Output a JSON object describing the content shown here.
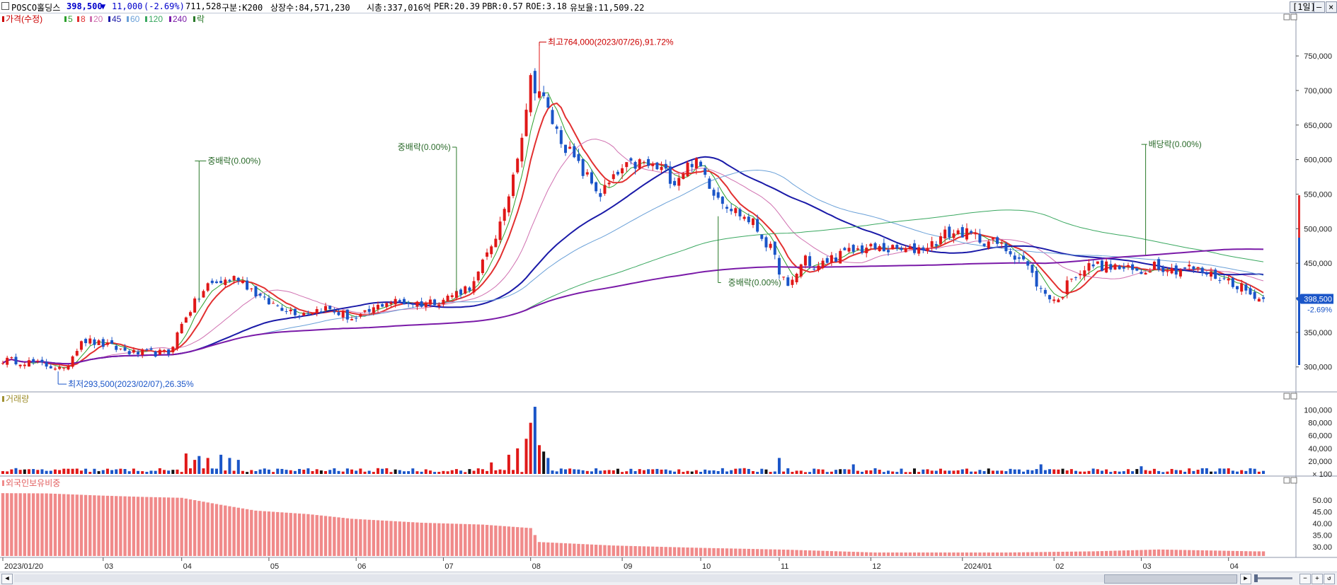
{
  "header": {
    "name": "POSCO홀딩스",
    "price": "398,500",
    "change_arrow": "▼",
    "change": "11,000",
    "change_pct": "(-2.69%)",
    "volume": "711,528",
    "segment": "구분:K200",
    "listed_shares": "상장수:84,571,230",
    "market_cap": "시총:337,016억",
    "per": "PER:20.39",
    "pbr": "PBR:0.57",
    "roe": "ROE:3.18",
    "float": "유보율:11,509.22",
    "period_button": "[1일]",
    "colors": {
      "down": "#0000cc",
      "up": "#cc0000"
    }
  },
  "price_legend": {
    "price_label": "가격(수정)",
    "ma_items": [
      {
        "label": "5",
        "color": "#2ca02c"
      },
      {
        "label": "8",
        "color": "#e23030"
      },
      {
        "label": "20",
        "color": "#d070b0"
      },
      {
        "label": "45",
        "color": "#1a1aa8"
      },
      {
        "label": "60",
        "color": "#6aa0d8"
      },
      {
        "label": "120",
        "color": "#3aa860"
      },
      {
        "label": "240",
        "color": "#7a1aa8"
      },
      {
        "label": "락",
        "color": "#2a7a2a"
      }
    ]
  },
  "volume_legend": "거래량",
  "foreign_legend": "외국인보유비중",
  "chart_data": [
    {
      "type": "candlestick",
      "title": "POSCO홀딩스 가격(수정)",
      "yticks": [
        "300,000",
        "350,000",
        "400,000",
        "450,000",
        "500,000",
        "550,000",
        "600,000",
        "650,000",
        "700,000",
        "750,000"
      ],
      "ytick_values": [
        300000,
        350000,
        400000,
        450000,
        500000,
        550000,
        600000,
        650000,
        700000,
        750000
      ],
      "ylim": [
        270000,
        790000
      ],
      "x_labels": [
        "2023/01/20",
        "03",
        "04",
        "05",
        "06",
        "07",
        "08",
        "09",
        "10",
        "11",
        "12",
        "2024/01",
        "02",
        "03",
        "04"
      ],
      "x_label_index": [
        0,
        23,
        41,
        61,
        81,
        101,
        121,
        142,
        160,
        178,
        199,
        220,
        241,
        261,
        281
      ],
      "n_days": 290,
      "anchors": [
        [
          0,
          310000
        ],
        [
          5,
          308000
        ],
        [
          12,
          300000
        ],
        [
          14,
          294000
        ],
        [
          18,
          340000
        ],
        [
          23,
          332000
        ],
        [
          30,
          320000
        ],
        [
          38,
          320000
        ],
        [
          42,
          375000
        ],
        [
          47,
          418000
        ],
        [
          54,
          430000
        ],
        [
          60,
          395000
        ],
        [
          68,
          378000
        ],
        [
          74,
          385000
        ],
        [
          81,
          368000
        ],
        [
          88,
          395000
        ],
        [
          96,
          392000
        ],
        [
          101,
          398000
        ],
        [
          108,
          420000
        ],
        [
          115,
          520000
        ],
        [
          119,
          640000
        ],
        [
          121,
          715000
        ],
        [
          123,
          700000
        ],
        [
          127,
          640000
        ],
        [
          132,
          590000
        ],
        [
          137,
          550000
        ],
        [
          142,
          585000
        ],
        [
          146,
          595000
        ],
        [
          151,
          585000
        ],
        [
          154,
          570000
        ],
        [
          158,
          598000
        ],
        [
          160,
          588000
        ],
        [
          163,
          555000
        ],
        [
          167,
          530000
        ],
        [
          172,
          508000
        ],
        [
          176,
          470000
        ],
        [
          180,
          412000
        ],
        [
          184,
          460000
        ],
        [
          186,
          440000
        ],
        [
          190,
          458000
        ],
        [
          195,
          468000
        ],
        [
          198,
          472000
        ],
        [
          203,
          470000
        ],
        [
          208,
          468000
        ],
        [
          213,
          478000
        ],
        [
          216,
          492000
        ],
        [
          220,
          495000
        ],
        [
          224,
          485000
        ],
        [
          228,
          478000
        ],
        [
          234,
          455000
        ],
        [
          238,
          410000
        ],
        [
          242,
          395000
        ],
        [
          245,
          432000
        ],
        [
          250,
          448000
        ],
        [
          256,
          443000
        ],
        [
          261,
          436000
        ],
        [
          264,
          450000
        ],
        [
          268,
          440000
        ],
        [
          272,
          444000
        ],
        [
          276,
          435000
        ],
        [
          281,
          425000
        ],
        [
          284,
          416000
        ],
        [
          287,
          398500
        ]
      ],
      "ma_periods": [
        5,
        8,
        20,
        45,
        60,
        120,
        240
      ],
      "ma_colors": [
        "#2ca02c",
        "#e23030",
        "#d070b0",
        "#1a1aa8",
        "#6aa0d8",
        "#3aa860",
        "#7a1aa8"
      ],
      "ma_widths": [
        1,
        2,
        1,
        2,
        1,
        1,
        2
      ],
      "current_price_label": "398,500",
      "current_change_label": "-2.69%",
      "annotations": {
        "high": {
          "text": "최고764,000(2023/07/26),91.72%",
          "index": 123,
          "value": 764000
        },
        "low": {
          "text": "최저293,500(2023/02/07),26.35%",
          "index": 13,
          "value": 293500
        },
        "events": [
          {
            "text": "중배락(0.00%)",
            "index": 45,
            "target": 395000,
            "label_value": 598000
          },
          {
            "text": "중배락(0.00%)",
            "index": 104,
            "target": 408000,
            "label_value": 618000
          },
          {
            "text": "중배락(0.00%)",
            "index": 164,
            "target": 518000,
            "label_value": 422000
          },
          {
            "text": "배당락(0.00%)",
            "index": 262,
            "target": 462000,
            "label_value": 622000
          }
        ]
      }
    },
    {
      "type": "bar",
      "title": "거래량",
      "yticks": [
        "20,000",
        "40,000",
        "60,000",
        "80,000",
        "100,000"
      ],
      "ytick_values": [
        20000,
        40000,
        60000,
        80000,
        100000
      ],
      "unit_label": "× 100",
      "ylim": [
        0,
        115000
      ],
      "spikes": [
        [
          42,
          32000
        ],
        [
          44,
          22000
        ],
        [
          45,
          28000
        ],
        [
          47,
          25000
        ],
        [
          50,
          30000
        ],
        [
          52,
          25000
        ],
        [
          54,
          22000
        ],
        [
          112,
          18000
        ],
        [
          116,
          30000
        ],
        [
          118,
          40000
        ],
        [
          120,
          55000
        ],
        [
          121,
          80000
        ],
        [
          122,
          105000
        ],
        [
          123,
          45000
        ],
        [
          124,
          35000
        ],
        [
          125,
          25000
        ],
        [
          178,
          25000
        ],
        [
          195,
          15000
        ],
        [
          238,
          15000
        ],
        [
          261,
          12000
        ]
      ],
      "base_volume": 7000
    },
    {
      "type": "bar",
      "title": "외국인보유비중",
      "yticks": [
        "30.00",
        "35.00",
        "40.00",
        "45.00",
        "50.00"
      ],
      "ytick_values": [
        30,
        35,
        40,
        45,
        50
      ],
      "ylim": [
        26,
        57
      ],
      "anchors": [
        [
          0,
          53
        ],
        [
          10,
          52.9
        ],
        [
          22,
          52
        ],
        [
          32,
          51.4
        ],
        [
          41,
          51
        ],
        [
          50,
          48
        ],
        [
          58,
          45.5
        ],
        [
          70,
          44
        ],
        [
          80,
          42
        ],
        [
          96,
          40.3
        ],
        [
          110,
          39.5
        ],
        [
          121,
          38
        ],
        [
          123,
          32
        ],
        [
          140,
          30.5
        ],
        [
          160,
          29.5
        ],
        [
          180,
          28.7
        ],
        [
          200,
          27.5
        ],
        [
          230,
          27.5
        ],
        [
          250,
          28
        ],
        [
          265,
          28.8
        ],
        [
          287,
          28
        ]
      ],
      "color": "#f08a8a"
    }
  ]
}
